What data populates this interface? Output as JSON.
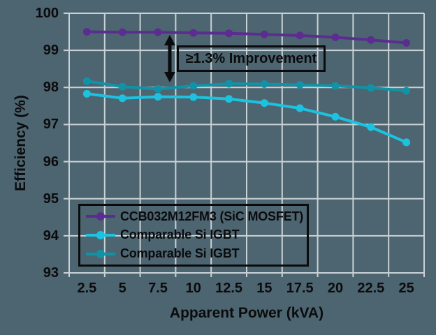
{
  "figure": {
    "background_color": "#4d6570",
    "gridline_color": "#cad2d5",
    "text_color": "#0b0b0d"
  },
  "chart_data": {
    "type": "line",
    "title": "",
    "xlabel": "Apparent Power (kVA)",
    "ylabel": "Efficiency (%)",
    "x_categories": [
      "2.5",
      "5",
      "7.5",
      "10",
      "12.5",
      "15",
      "17.5",
      "20",
      "22.5",
      "25"
    ],
    "x_values": [
      2.5,
      5,
      7.5,
      10,
      12.5,
      15,
      17.5,
      20,
      22.5,
      25
    ],
    "y_ticks": [
      100,
      99,
      98,
      97,
      96,
      95,
      94,
      93
    ],
    "ylim": [
      93,
      100
    ],
    "grid": true,
    "legend_position": "lower-left",
    "series": [
      {
        "name": "CCB032M12FM3 (SiC MOSFET)",
        "color": "#5c2d91",
        "values": [
          99.5,
          99.49,
          99.49,
          99.47,
          99.46,
          99.43,
          99.4,
          99.35,
          99.28,
          99.2
        ]
      },
      {
        "name": "Comparable Si IGBT",
        "color": "#1cc3e0",
        "values": [
          97.83,
          97.71,
          97.75,
          97.74,
          97.69,
          97.58,
          97.44,
          97.21,
          96.93,
          96.52
        ]
      },
      {
        "name": "Comparable Si IGBT",
        "color": "#1093a7",
        "values": [
          98.17,
          98.02,
          97.96,
          98.04,
          98.1,
          98.09,
          98.07,
          98.04,
          97.99,
          97.91
        ]
      }
    ],
    "annotation": {
      "text": "≥1.3% Improvement"
    }
  }
}
